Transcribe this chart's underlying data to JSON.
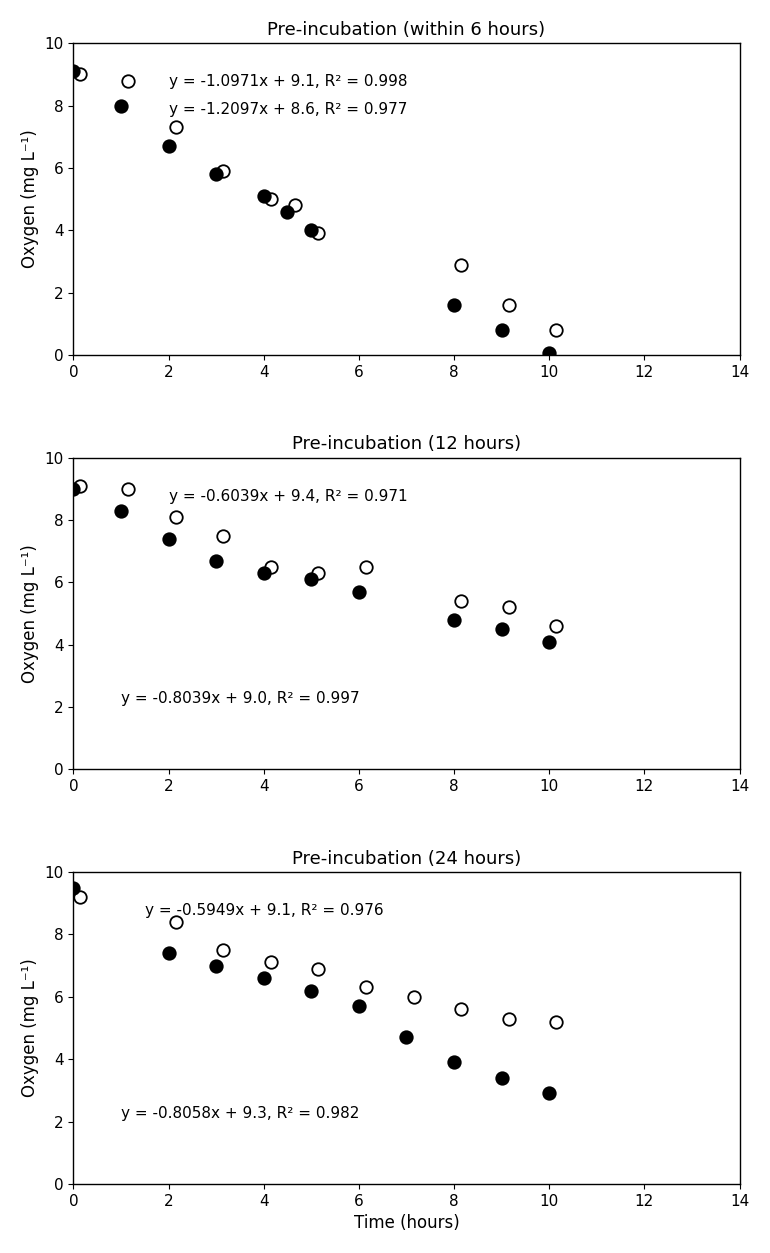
{
  "panels": [
    {
      "title": "Pre-incubation (within 6 hours)",
      "open_x": [
        0.15,
        1.15,
        2.15,
        3.15,
        4.15,
        4.65,
        5.15,
        8.15,
        9.15,
        10.15
      ],
      "open_y": [
        9.0,
        8.8,
        7.3,
        5.9,
        5.0,
        4.8,
        3.9,
        2.9,
        1.6,
        0.8
      ],
      "filled_x": [
        0.0,
        1.0,
        2.0,
        3.0,
        4.0,
        4.5,
        5.0,
        8.0,
        9.0,
        10.0
      ],
      "filled_y": [
        9.1,
        8.0,
        6.7,
        5.8,
        5.1,
        4.6,
        4.0,
        1.6,
        0.8,
        0.05
      ],
      "eq_open": "y = -1.0971x + 9.1, R² = 0.998",
      "eq_filled": "y = -1.2097x + 8.6, R² = 0.977",
      "eq_open_x": 2.0,
      "eq_open_y": 9.0,
      "eq_filled_x": 2.0,
      "eq_filled_y": 8.1,
      "show_xlabel": false
    },
    {
      "title": "Pre-incubation (12 hours)",
      "open_x": [
        0.15,
        1.15,
        2.15,
        3.15,
        4.15,
        5.15,
        6.15,
        8.15,
        9.15,
        10.15
      ],
      "open_y": [
        9.1,
        9.0,
        8.1,
        7.5,
        6.5,
        6.3,
        6.5,
        5.4,
        5.2,
        4.6
      ],
      "filled_x": [
        0.0,
        1.0,
        2.0,
        3.0,
        4.0,
        5.0,
        6.0,
        8.0,
        9.0,
        10.0
      ],
      "filled_y": [
        9.0,
        8.3,
        7.4,
        6.7,
        6.3,
        6.1,
        5.7,
        4.8,
        4.5,
        4.1
      ],
      "eq_open": "y = -0.6039x + 9.4, R² = 0.971",
      "eq_filled": "y = -0.8039x + 9.0, R² = 0.997",
      "eq_open_x": 2.0,
      "eq_open_y": 9.0,
      "eq_filled_x": 1.0,
      "eq_filled_y": 2.5,
      "show_xlabel": false
    },
    {
      "title": "Pre-incubation (24 hours)",
      "open_x": [
        0.15,
        2.15,
        3.15,
        4.15,
        5.15,
        6.15,
        7.15,
        8.15,
        9.15,
        10.15
      ],
      "open_y": [
        9.2,
        8.4,
        7.5,
        7.1,
        6.9,
        6.3,
        6.0,
        5.6,
        5.3,
        5.2
      ],
      "filled_x": [
        0.0,
        2.0,
        3.0,
        4.0,
        5.0,
        6.0,
        7.0,
        8.0,
        9.0,
        10.0
      ],
      "filled_y": [
        9.5,
        7.4,
        7.0,
        6.6,
        6.2,
        5.7,
        4.7,
        3.9,
        3.4,
        2.9
      ],
      "eq_open": "y = -0.5949x + 9.1, R² = 0.976",
      "eq_filled": "y = -0.8058x + 9.3, R² = 0.982",
      "eq_open_x": 1.5,
      "eq_open_y": 9.0,
      "eq_filled_x": 1.0,
      "eq_filled_y": 2.5,
      "show_xlabel": true
    }
  ],
  "ylim": [
    0,
    10
  ],
  "xlim": [
    0,
    14
  ],
  "yticks": [
    0,
    2,
    4,
    6,
    8,
    10
  ],
  "xticks": [
    0,
    2,
    4,
    6,
    8,
    10,
    12,
    14
  ],
  "ylabel": "Oxygen (mg L⁻¹)",
  "xlabel": "Time (hours)",
  "marker_size": 9,
  "open_color": "white",
  "filled_color": "black",
  "edge_color": "black",
  "background_color": "#ffffff",
  "title_fontsize": 13,
  "label_fontsize": 12,
  "tick_fontsize": 11,
  "eq_fontsize": 11
}
